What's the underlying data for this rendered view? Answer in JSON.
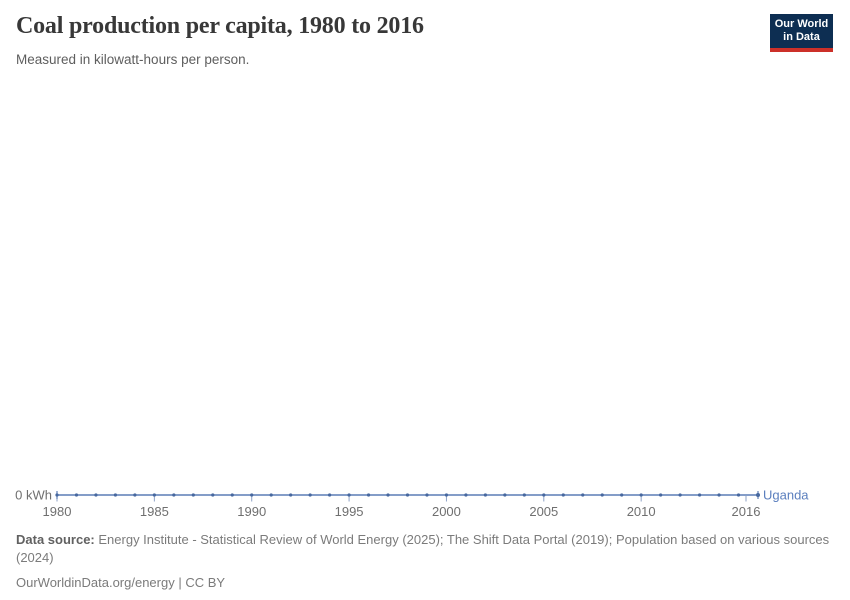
{
  "header": {
    "title": "Coal production per capita, 1980 to 2016",
    "subtitle": "Measured in kilowatt-hours per person.",
    "logo": {
      "line1": "Our World",
      "line2": "in Data"
    }
  },
  "chart_data": {
    "type": "line",
    "title": "Coal production per capita, 1980 to 2016",
    "unit": "kilowatt-hours per person",
    "xlim": [
      1980,
      2016
    ],
    "ylim": [
      0,
      0
    ],
    "grid": false,
    "legend_position": "end-of-line-label",
    "x": [
      1980,
      1981,
      1982,
      1983,
      1984,
      1985,
      1986,
      1987,
      1988,
      1989,
      1990,
      1991,
      1992,
      1993,
      1994,
      1995,
      1996,
      1997,
      1998,
      1999,
      2000,
      2001,
      2002,
      2003,
      2004,
      2005,
      2006,
      2007,
      2008,
      2009,
      2010,
      2011,
      2012,
      2013,
      2014,
      2015,
      2016
    ],
    "series": [
      {
        "name": "Uganda",
        "values": [
          0,
          0,
          0,
          0,
          0,
          0,
          0,
          0,
          0,
          0,
          0,
          0,
          0,
          0,
          0,
          0,
          0,
          0,
          0,
          0,
          0,
          0,
          0,
          0,
          0,
          0,
          0,
          0,
          0,
          0,
          0,
          0,
          0,
          0,
          0,
          0,
          0
        ]
      }
    ],
    "x_ticks": [
      1980,
      1985,
      1990,
      1995,
      2000,
      2005,
      2010,
      2016
    ],
    "x_tick_labels": [
      "1980",
      "1985",
      "1990",
      "1995",
      "2000",
      "2005",
      "2010",
      "2016"
    ],
    "y_tick_labels": [
      "0 kWh"
    ]
  },
  "footer": {
    "data_source_label": "Data source:",
    "data_source_text": "Energy Institute - Statistical Review of World Energy (2025); The Shift Data Portal (2019); Population based on various sources (2024)",
    "url": "OurWorldinData.org/energy",
    "separator": " | ",
    "license": "CC BY"
  },
  "colors": {
    "line": "#5c7db5",
    "marker": "#47689f",
    "tick": "#8ea2c6",
    "axis_text": "#6f6f6f",
    "entity_label": "#5b7fbe",
    "logo_bg": "#0d2e52",
    "logo_bar": "#cc3029"
  }
}
